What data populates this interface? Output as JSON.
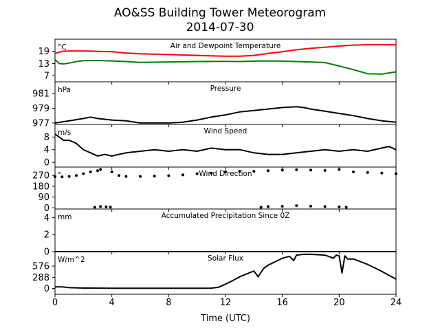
{
  "figure": {
    "title_line1": "AO&SS Building Tower Meteorogram",
    "title_line2": "2014-07-30",
    "xlabel": "Time (UTC)",
    "xticks": [
      "0",
      "4",
      "8",
      "12",
      "16",
      "20",
      "24"
    ]
  },
  "colors": {
    "temp": "#ff0000",
    "dew": "#008000",
    "black": "#000000"
  },
  "chart_data": [
    {
      "type": "line",
      "panel": "temperature",
      "title": "Air and Dewpoint Temperature",
      "unit": "°C",
      "ylim": [
        4,
        25
      ],
      "yticks": [
        "7",
        "13",
        "19"
      ],
      "ytick_values": [
        7,
        13,
        19
      ],
      "series": [
        {
          "x": [
            0,
            0.5,
            1,
            2,
            3,
            4,
            5,
            6,
            8,
            10,
            11,
            12,
            13,
            14,
            15,
            16,
            17,
            18,
            19,
            20,
            21,
            22,
            23,
            24
          ],
          "y": [
            18.0,
            19.0,
            19.2,
            19.2,
            19.0,
            18.8,
            18.2,
            17.8,
            17.4,
            17.0,
            16.8,
            16.6,
            16.6,
            17.0,
            18.0,
            18.8,
            19.8,
            20.5,
            21.0,
            21.6,
            22.1,
            22.3,
            22.3,
            22.2
          ]
        },
        {
          "x": [
            0,
            0.3,
            0.6,
            1,
            1.5,
            2,
            3,
            4,
            5,
            6,
            8,
            10,
            12,
            13,
            14,
            15,
            16,
            17,
            18,
            19,
            20,
            21,
            22,
            23,
            24
          ],
          "y": [
            15.0,
            13.0,
            12.8,
            13.2,
            14.0,
            14.4,
            14.5,
            14.3,
            14.0,
            13.6,
            13.8,
            14.0,
            14.1,
            14.0,
            14.2,
            14.3,
            14.2,
            14.0,
            13.8,
            13.5,
            11.8,
            10.0,
            8.0,
            7.8,
            8.9
          ]
        }
      ]
    },
    {
      "type": "line",
      "panel": "pressure",
      "title": "Pressure",
      "unit": "hPa",
      "ylim": [
        976.8,
        982.6
      ],
      "yticks": [
        "977",
        "979",
        "981"
      ],
      "ytick_values": [
        977,
        979,
        981
      ],
      "series": [
        {
          "x": [
            0,
            1,
            2,
            2.5,
            3,
            4,
            5,
            6,
            7,
            8,
            9,
            10,
            11,
            12,
            13,
            14,
            15,
            16,
            17,
            17.5,
            18,
            19,
            20,
            21,
            22,
            23,
            24
          ],
          "y": [
            977.0,
            977.3,
            977.6,
            977.8,
            977.6,
            977.4,
            977.3,
            977.0,
            977.0,
            977.0,
            977.1,
            977.4,
            977.8,
            978.1,
            978.5,
            978.7,
            978.9,
            979.1,
            979.2,
            979.1,
            978.9,
            978.6,
            978.3,
            978.0,
            977.6,
            977.3,
            977.1
          ]
        }
      ]
    },
    {
      "type": "line",
      "panel": "wind_speed",
      "title": "Wind Speed",
      "unit": "m/s",
      "ylim": [
        -1.5,
        12
      ],
      "yticks": [
        "0",
        "4",
        "8"
      ],
      "ytick_values": [
        0,
        4,
        8
      ],
      "series": [
        {
          "x": [
            0,
            0.3,
            0.6,
            1,
            1.5,
            2,
            2.5,
            3,
            3.5,
            4,
            5,
            6,
            7,
            8,
            9,
            10,
            11,
            12,
            13,
            14,
            15,
            16,
            17,
            18,
            19,
            20,
            21,
            22,
            23,
            23.5,
            24
          ],
          "y": [
            9,
            8,
            7,
            7,
            6,
            4,
            3,
            2,
            2.5,
            2,
            3,
            3.5,
            4,
            3.5,
            4,
            3.5,
            4.5,
            4,
            4,
            3,
            2.5,
            2.5,
            3,
            3.5,
            4,
            3.5,
            4,
            3.5,
            4.5,
            5,
            4
          ]
        }
      ]
    },
    {
      "type": "scatter",
      "panel": "wind_direction",
      "title": "Wind Direction",
      "unit": "°",
      "ylim": [
        -10,
        340
      ],
      "yticks": [
        "0",
        "90",
        "180",
        "270"
      ],
      "ytick_values": [
        0,
        90,
        180,
        270
      ],
      "series": [
        {
          "x": [
            0,
            0.5,
            1,
            1.5,
            2,
            2.5,
            3,
            3.2,
            4,
            4.5,
            5,
            6,
            7,
            8,
            9,
            10,
            11,
            12,
            13,
            14,
            15,
            16,
            17,
            18,
            19,
            20,
            21,
            22,
            23,
            24
          ],
          "y": [
            260,
            258,
            262,
            270,
            285,
            300,
            310,
            320,
            300,
            270,
            262,
            262,
            265,
            268,
            275,
            285,
            290,
            300,
            305,
            305,
            310,
            315,
            318,
            315,
            312,
            320,
            300,
            295,
            290,
            285
          ]
        },
        {
          "x": [
            2.8,
            3.2,
            3.6,
            3.9,
            14.5,
            15,
            16,
            17,
            18,
            19,
            20,
            20.5
          ],
          "y": [
            5,
            10,
            8,
            6,
            4,
            10,
            12,
            18,
            14,
            10,
            8,
            4
          ]
        }
      ]
    },
    {
      "type": "line",
      "panel": "precipitation",
      "title": "Accumulated Precipitation Since 0Z",
      "unit": "mm",
      "ylim": [
        0,
        5
      ],
      "yticks": [
        "0",
        "2",
        "4"
      ],
      "ytick_values": [
        0,
        2,
        4
      ],
      "series": [
        {
          "x": [
            0,
            24
          ],
          "y": [
            0,
            0
          ]
        }
      ]
    },
    {
      "type": "line",
      "panel": "solar_flux",
      "title": "Solar Flux",
      "unit": "W/m^2",
      "ylim": [
        -150,
        950
      ],
      "yticks": [
        "0",
        "288",
        "576"
      ],
      "ytick_values": [
        0,
        288,
        576
      ],
      "series": [
        {
          "x": [
            0,
            0.5,
            1,
            2,
            4,
            6,
            8,
            10,
            11,
            11.5,
            12,
            12.5,
            13,
            14,
            14.3,
            14.5,
            14.7,
            15,
            16,
            16.5,
            16.8,
            17,
            17.5,
            18,
            19,
            19.6,
            19.8,
            20,
            20.2,
            20.4,
            20.6,
            21,
            22,
            23,
            24
          ],
          "y": [
            40,
            40,
            20,
            10,
            5,
            5,
            5,
            5,
            8,
            30,
            110,
            200,
            300,
            450,
            300,
            420,
            520,
            600,
            780,
            830,
            720,
            860,
            880,
            880,
            860,
            780,
            860,
            840,
            400,
            840,
            760,
            760,
            620,
            440,
            240
          ]
        }
      ]
    }
  ]
}
